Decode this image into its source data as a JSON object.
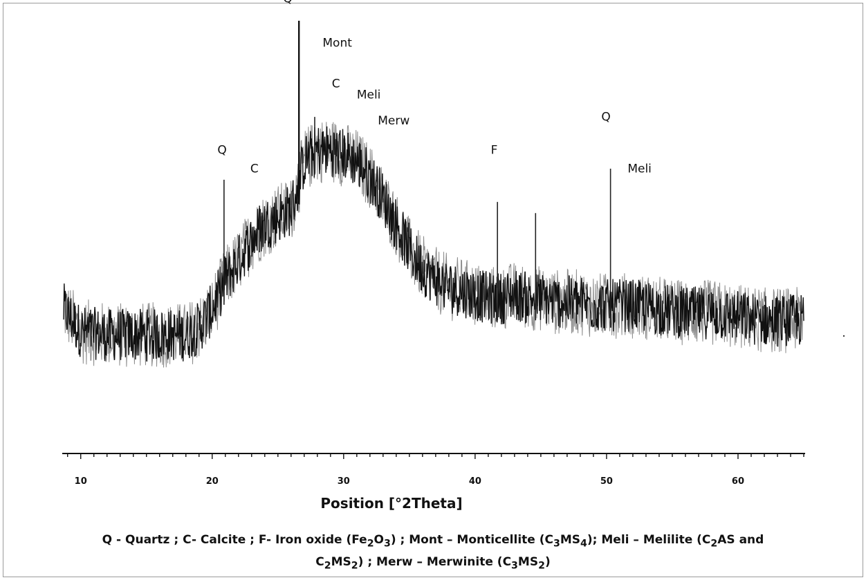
{
  "chart_data": {
    "type": "line",
    "title": "",
    "xlabel": "Position [°2Theta]",
    "ylabel": "",
    "xlim": [
      8.7,
      65
    ],
    "ylim": [
      0,
      100
    ],
    "x_ticks": [
      10,
      20,
      30,
      40,
      50,
      60
    ],
    "grid": false,
    "legend": "none",
    "series": [
      {
        "color": "#111111",
        "x": [
          8.7,
          10,
          12,
          14,
          16,
          18,
          19,
          20,
          21,
          22,
          23,
          24,
          25,
          26,
          26.5,
          27,
          28,
          29,
          30,
          31,
          32,
          33,
          34,
          35,
          36,
          37,
          38,
          39,
          40,
          41,
          42,
          43,
          44,
          45,
          46,
          47,
          48,
          49,
          50,
          51,
          52,
          54,
          56,
          58,
          60,
          62,
          64,
          65
        ],
        "y": [
          22,
          16,
          15,
          15,
          15,
          15,
          17,
          22,
          30,
          35,
          41,
          45,
          47,
          49,
          55,
          62,
          65,
          65,
          64,
          62,
          58,
          52,
          45,
          38,
          33,
          30,
          28,
          27,
          26,
          25,
          25,
          26,
          25,
          25,
          24,
          24,
          24,
          23,
          23,
          23,
          23,
          22,
          21,
          21,
          20,
          19,
          19,
          19
        ]
      }
    ],
    "peaks": [
      {
        "x": 20.9,
        "y": 57
      },
      {
        "x": 23.6,
        "y": 50
      },
      {
        "x": 26.6,
        "y": 100
      },
      {
        "x": 27.8,
        "y": 74
      },
      {
        "x": 29.4,
        "y": 68
      },
      {
        "x": 31.2,
        "y": 67
      },
      {
        "x": 32.2,
        "y": 60
      },
      {
        "x": 41.7,
        "y": 51
      },
      {
        "x": 44.6,
        "y": 48
      },
      {
        "x": 50.3,
        "y": 60
      }
    ],
    "annotations": [
      {
        "text": "Q",
        "x": 25.4,
        "y": 105
      },
      {
        "text": "Mont",
        "x": 28.4,
        "y": 93
      },
      {
        "text": "C",
        "x": 29.1,
        "y": 82
      },
      {
        "text": "Meli",
        "x": 31.0,
        "y": 79
      },
      {
        "text": "Merw",
        "x": 32.6,
        "y": 72
      },
      {
        "text": "Q",
        "x": 20.4,
        "y": 64
      },
      {
        "text": "C",
        "x": 22.9,
        "y": 59
      },
      {
        "text": "F",
        "x": 41.2,
        "y": 64
      },
      {
        "text": "Q",
        "x": 49.6,
        "y": 73
      },
      {
        "text": "Meli",
        "x": 51.6,
        "y": 59
      }
    ]
  },
  "legend_text": {
    "line1_prefix": "Q - Quartz ;  C- Calcite ;  F- Iron oxide (Fe",
    "line1_fe_sub2": "2",
    "line1_o": "O",
    "line1_o_sub3": "3",
    "line1_mid": ") ; Mont – Monticellite (C",
    "mont_sub3": "3",
    "mont_ms": "MS",
    "mont_sub4": "4",
    "line1_meli": "); Meli – Melilite (C",
    "meli_sub2": "2",
    "meli_as": "AS and",
    "line2_c": "C",
    "line2_c_sub2": "2",
    "line2_ms": "MS",
    "line2_ms_sub2": "2",
    "line2_merw": ") ;  Merw – Merwinite (C",
    "merw_sub3": "3",
    "merw_ms": "MS",
    "merw_sub2": "2",
    "merw_end": ")"
  }
}
